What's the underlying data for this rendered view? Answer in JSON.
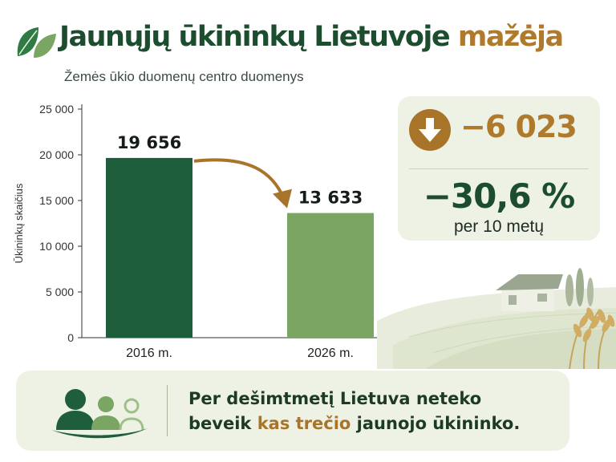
{
  "header": {
    "title_main": "Jaunųjų ūkininkų Lietuvoje",
    "title_accent": "mažėja",
    "subtitle": "Žemės ūkio duomenų centro duomenys"
  },
  "chart_data": {
    "type": "bar",
    "categories": [
      "2016 m.",
      "2026 m."
    ],
    "values": [
      19656,
      13633
    ],
    "value_labels": [
      "19 656",
      "13 633"
    ],
    "ylabel": "Ūkininkų skaičius",
    "ylim": [
      0,
      25000
    ],
    "yticks": [
      0,
      5000,
      10000,
      15000,
      20000,
      25000
    ],
    "ytick_labels": [
      "0",
      "5 000",
      "10 000",
      "15 000",
      "20 000",
      "25 000"
    ],
    "bar_colors": [
      "#1f5e3c",
      "#7aa563"
    ],
    "grid": false
  },
  "stats": {
    "difference": "−6 023",
    "percent": "−30,6 %",
    "period": "per 10 metų",
    "down_icon": "arrow-down-circle-icon"
  },
  "footer": {
    "line1": "Per dešimtmetį Lietuva neteko",
    "line2_prefix": "beveik ",
    "line2_highlight": "kas trečio",
    "line2_suffix": " jaunojo ūkininko.",
    "icon": "people-group-icon"
  },
  "colors": {
    "dark_green": "#1d4d2f",
    "accent_brown": "#b07a2c",
    "light_green": "#7aa563",
    "card_bg": "#eef2e4"
  }
}
